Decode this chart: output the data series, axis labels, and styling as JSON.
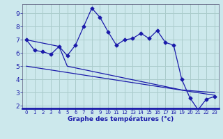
{
  "xlabel": "Graphe des températures (°c)",
  "bg_color": "#cce8ec",
  "grid_color": "#aacccc",
  "line_color": "#1a1aaa",
  "xlim": [
    -0.5,
    23.5
  ],
  "ylim": [
    1.8,
    9.7
  ],
  "yticks": [
    2,
    3,
    4,
    5,
    6,
    7,
    8,
    9
  ],
  "xticks": [
    0,
    1,
    2,
    3,
    4,
    5,
    6,
    7,
    8,
    9,
    10,
    11,
    12,
    13,
    14,
    15,
    16,
    17,
    18,
    19,
    20,
    21,
    22,
    23
  ],
  "main_x": [
    0,
    1,
    2,
    3,
    4,
    5,
    6,
    7,
    8,
    9,
    10,
    11,
    12,
    13,
    14,
    15,
    16,
    17,
    18,
    19,
    20,
    21,
    22,
    23
  ],
  "main_y": [
    7.0,
    6.2,
    6.1,
    5.9,
    6.5,
    5.8,
    6.6,
    8.0,
    9.4,
    8.7,
    7.6,
    6.6,
    7.0,
    7.1,
    7.5,
    7.1,
    7.7,
    6.8,
    6.6,
    4.0,
    2.6,
    1.7,
    2.5,
    2.7
  ],
  "line2_x": [
    0,
    4,
    5,
    19,
    23
  ],
  "line2_y": [
    7.0,
    6.5,
    5.0,
    3.2,
    3.0
  ],
  "line3_x": [
    0,
    23
  ],
  "line3_y": [
    5.0,
    2.8
  ],
  "marker": "D",
  "markersize": 2.5,
  "linewidth": 0.9,
  "tick_fontsize_x": 5.0,
  "tick_fontsize_y": 6.5,
  "xlabel_fontsize": 6.5
}
